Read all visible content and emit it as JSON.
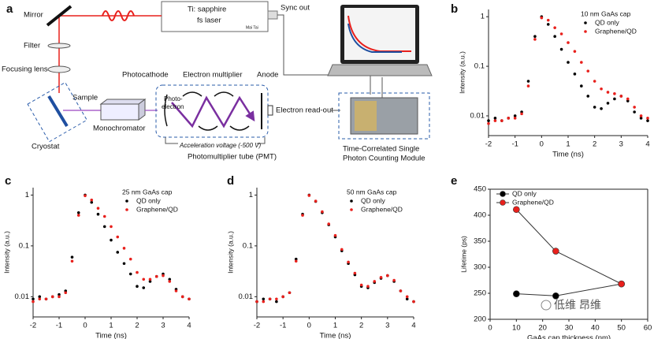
{
  "diagram": {
    "label": "a",
    "laser": [
      "Ti: sapphire",
      "fs laser"
    ],
    "laser_model": "Mai Tai",
    "sync_out": "Sync out",
    "mirror": "Mirror",
    "filter": "Filter",
    "focusing_lens": "Focusing lens",
    "sample": "Sample",
    "cryostat": "Cryostat",
    "photocathode": "Photocathode",
    "electron_multiplier": "Electron multiplier",
    "anode": "Anode",
    "photo_electron": [
      "Photo-",
      "electron"
    ],
    "monochromator": "Monochromator",
    "electron_readout": "Electron read-out",
    "acceleration_voltage": "Acceleration voltage (-500 V)",
    "pmt": "Photomultiplier tube (PMT)",
    "tcspc": [
      "Time-Correlated Single",
      "Photon Counting Module"
    ]
  },
  "chart_data": [
    {
      "label": "b",
      "type": "scatter",
      "legend_title": "10 nm GaAs cap",
      "xlabel": "Time (ns)",
      "ylabel": "Intensity (a.u.)",
      "log_y": true,
      "legend": "top-right",
      "x": [
        -2,
        -1.75,
        -1.5,
        -1.25,
        -1,
        -0.75,
        -0.5,
        -0.25,
        0,
        0.25,
        0.5,
        0.75,
        1,
        1.25,
        1.5,
        1.75,
        2,
        2.25,
        2.5,
        2.75,
        3,
        3.25,
        3.5,
        3.75,
        4
      ],
      "series": [
        {
          "name": "QD only",
          "color": "#000000",
          "values": [
            0.008,
            0.009,
            0.008,
            0.009,
            0.01,
            0.012,
            0.05,
            0.4,
            1,
            0.7,
            0.4,
            0.22,
            0.12,
            0.07,
            0.04,
            0.025,
            0.015,
            0.014,
            0.018,
            0.022,
            0.025,
            0.02,
            0.012,
            0.009,
            0.008
          ]
        },
        {
          "name": "Graphene/QD",
          "color": "#e8201c",
          "values": [
            0.007,
            0.008,
            0.008,
            0.009,
            0.009,
            0.011,
            0.04,
            0.35,
            0.95,
            0.85,
            0.6,
            0.45,
            0.3,
            0.2,
            0.12,
            0.08,
            0.05,
            0.035,
            0.03,
            0.028,
            0.025,
            0.022,
            0.015,
            0.01,
            0.009
          ]
        }
      ],
      "xlim": [
        -2,
        4
      ],
      "ylim": [
        0.004,
        1.4
      ],
      "xticks": [
        -2,
        -1,
        0,
        1,
        2,
        3,
        4
      ],
      "yticks": [
        0.01,
        0.1,
        1
      ]
    },
    {
      "label": "c",
      "type": "scatter",
      "legend_title": "25 nm GaAs cap",
      "xlabel": "Time (ns)",
      "ylabel": "Intensity (a.u.)",
      "log_y": true,
      "legend": "top-right",
      "x": [
        -2,
        -1.75,
        -1.5,
        -1.25,
        -1,
        -0.75,
        -0.5,
        -0.25,
        0,
        0.25,
        0.5,
        0.75,
        1,
        1.25,
        1.5,
        1.75,
        2,
        2.25,
        2.5,
        2.75,
        3,
        3.25,
        3.5,
        3.75,
        4
      ],
      "series": [
        {
          "name": "QD only",
          "color": "#000000",
          "values": [
            0.009,
            0.01,
            0.009,
            0.01,
            0.011,
            0.013,
            0.06,
            0.45,
            1,
            0.72,
            0.42,
            0.24,
            0.13,
            0.075,
            0.045,
            0.028,
            0.016,
            0.015,
            0.02,
            0.025,
            0.028,
            0.022,
            0.014,
            0.01,
            0.009
          ]
        },
        {
          "name": "Graphene/QD",
          "color": "#e8201c",
          "values": [
            0.008,
            0.009,
            0.009,
            0.01,
            0.01,
            0.012,
            0.05,
            0.4,
            0.97,
            0.8,
            0.55,
            0.38,
            0.24,
            0.15,
            0.09,
            0.055,
            0.03,
            0.022,
            0.022,
            0.025,
            0.026,
            0.02,
            0.013,
            0.01,
            0.009
          ]
        }
      ],
      "xlim": [
        -2,
        4
      ],
      "ylim": [
        0.004,
        1.4
      ],
      "xticks": [
        -2,
        -1,
        0,
        1,
        2,
        3,
        4
      ],
      "yticks": [
        0.01,
        0.1,
        1
      ]
    },
    {
      "label": "d",
      "type": "scatter",
      "legend_title": "50 nm GaAs cap",
      "xlabel": "Time (ns)",
      "ylabel": "Intensity (a.u.)",
      "log_y": true,
      "legend": "top-right",
      "x": [
        -2,
        -1.75,
        -1.5,
        -1.25,
        -1,
        -0.75,
        -0.5,
        -0.25,
        0,
        0.25,
        0.5,
        0.75,
        1,
        1.25,
        1.5,
        1.75,
        2,
        2.25,
        2.5,
        2.75,
        3,
        3.25,
        3.5,
        3.75,
        4
      ],
      "series": [
        {
          "name": "QD only",
          "color": "#000000",
          "values": [
            0.008,
            0.009,
            0.009,
            0.008,
            0.01,
            0.012,
            0.055,
            0.42,
            1,
            0.75,
            0.45,
            0.26,
            0.15,
            0.08,
            0.045,
            0.027,
            0.016,
            0.015,
            0.019,
            0.023,
            0.026,
            0.02,
            0.013,
            0.009,
            0.008
          ]
        },
        {
          "name": "Graphene/QD",
          "color": "#e8201c",
          "values": [
            0.008,
            0.008,
            0.009,
            0.009,
            0.01,
            0.012,
            0.05,
            0.4,
            0.98,
            0.76,
            0.47,
            0.27,
            0.16,
            0.085,
            0.048,
            0.029,
            0.017,
            0.016,
            0.02,
            0.024,
            0.026,
            0.021,
            0.013,
            0.01,
            0.008
          ]
        }
      ],
      "xlim": [
        -2,
        4
      ],
      "ylim": [
        0.004,
        1.4
      ],
      "xticks": [
        -2,
        -1,
        0,
        1,
        2,
        3,
        4
      ],
      "yticks": [
        0.01,
        0.1,
        1
      ]
    },
    {
      "label": "e",
      "type": "line",
      "xlabel": "GaAs cap thickness (nm)",
      "ylabel": "Lifetime (ps)",
      "legend": "top-left",
      "x": [
        10,
        25,
        50
      ],
      "series": [
        {
          "name": "QD only",
          "color": "#000000",
          "values": [
            249,
            245,
            268
          ]
        },
        {
          "name": "Graphene/QD",
          "color": "#e8201c",
          "values": [
            411,
            331,
            268
          ]
        }
      ],
      "xlim": [
        0,
        60
      ],
      "ylim": [
        200,
        450
      ],
      "xticks": [
        0,
        10,
        20,
        30,
        40,
        50,
        60
      ],
      "yticks": [
        200,
        250,
        300,
        350,
        400,
        450
      ]
    }
  ],
  "watermark": "低维 昂维"
}
